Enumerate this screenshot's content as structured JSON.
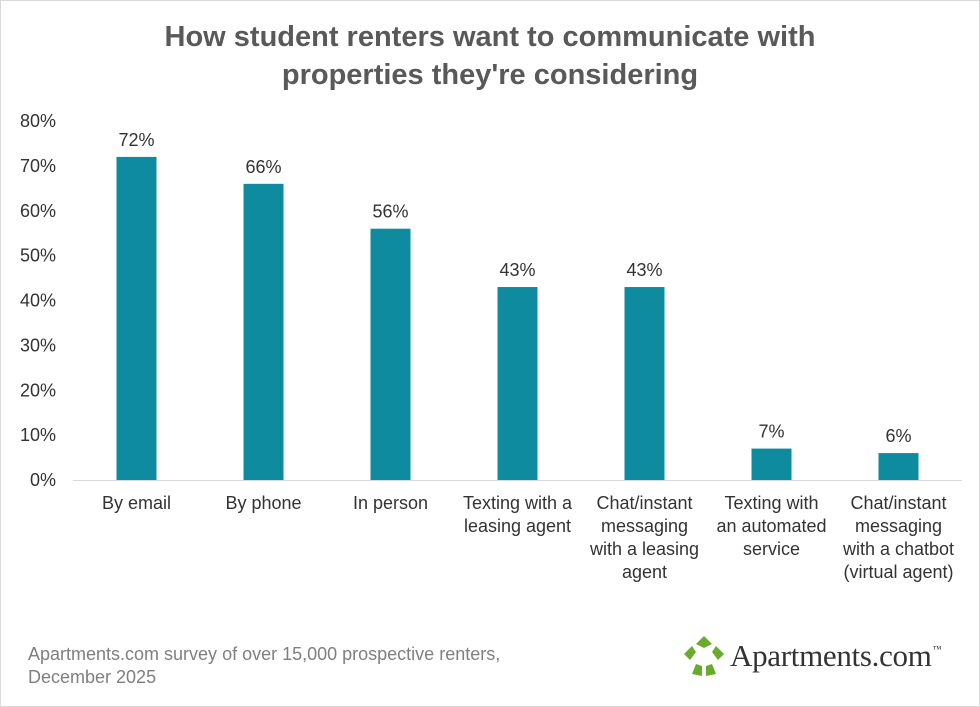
{
  "title_lines": [
    "How student renters want to communicate with",
    "properties they're considering"
  ],
  "source_lines": [
    "Apartments.com survey of over 15,000 prospective renters,",
    "December 2025"
  ],
  "logo": {
    "text": "Apartments.com",
    "tm": "™"
  },
  "colors": {
    "bar": "#0e8b9f",
    "title": "#595959",
    "text": "#333333",
    "axis": "#d9d9d9",
    "logo_green": "#6aab2e"
  },
  "chart_data": {
    "type": "bar",
    "categories": [
      [
        "By email"
      ],
      [
        "By phone"
      ],
      [
        "In person"
      ],
      [
        "Texting with a",
        "leasing agent"
      ],
      [
        "Chat/instant",
        "messaging",
        "with a leasing",
        "agent"
      ],
      [
        "Texting with",
        "an automated",
        "service"
      ],
      [
        "Chat/instant",
        "messaging",
        "with a chatbot",
        "(virtual agent)"
      ]
    ],
    "values": [
      72,
      66,
      56,
      43,
      43,
      7,
      6
    ],
    "data_labels": [
      "72%",
      "66%",
      "56%",
      "43%",
      "43%",
      "7%",
      "6%"
    ],
    "ylim": [
      0,
      80
    ],
    "yticks": [
      "0%",
      "10%",
      "20%",
      "30%",
      "40%",
      "50%",
      "60%",
      "70%",
      "80%"
    ],
    "grid": false,
    "legend": "none"
  }
}
